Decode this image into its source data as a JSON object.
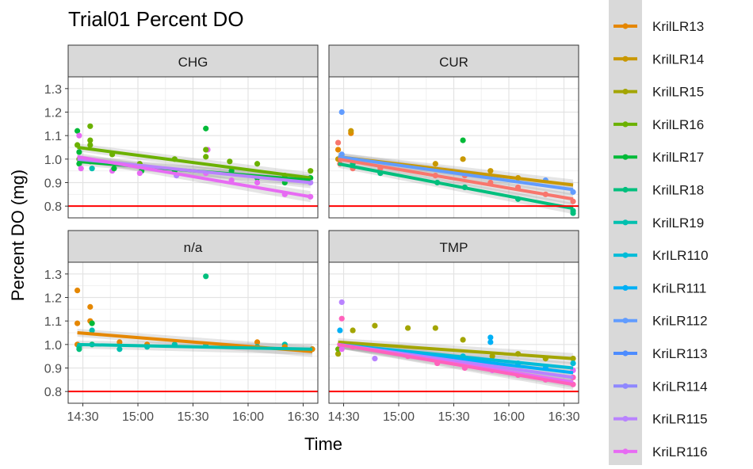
{
  "chart_data": {
    "type": "scatter",
    "title": "Trial01 Percent DO",
    "xlabel": "Time",
    "ylabel": "Percent DO (mg)",
    "ylim": [
      0.75,
      1.35
    ],
    "yticks": [
      0.8,
      0.9,
      1.0,
      1.1,
      1.2,
      1.3
    ],
    "ytick_labels": [
      "0.8",
      "0.9",
      "1.0",
      "1.1",
      "1.2",
      "1.3"
    ],
    "xlim": [
      "14:22",
      "16:38"
    ],
    "xticks": [
      "14:30",
      "15:00",
      "15:30",
      "16:00",
      "16:30"
    ],
    "reference_line": {
      "y": 0.8,
      "color": "#ff0000"
    },
    "grid": true,
    "legend_position": "right",
    "series": [
      {
        "name": "KrilLR13",
        "color": "#E58700"
      },
      {
        "name": "KrilLR14",
        "color": "#C99800"
      },
      {
        "name": "KrilLR15",
        "color": "#A3A500"
      },
      {
        "name": "KrilLR16",
        "color": "#6BB100"
      },
      {
        "name": "KrilLR17",
        "color": "#00BA38"
      },
      {
        "name": "KrilLR18",
        "color": "#00BF7D"
      },
      {
        "name": "KrilLR19",
        "color": "#00C0AF"
      },
      {
        "name": "KrILR110",
        "color": "#00BCD8"
      },
      {
        "name": "KriLR111",
        "color": "#00B0F6"
      },
      {
        "name": "KriLR112",
        "color": "#619CFF"
      },
      {
        "name": "KriLR113",
        "color": "#4d8cff"
      },
      {
        "name": "KriLR114",
        "color": "#8f88ff"
      },
      {
        "name": "KriLR115",
        "color": "#B983FF"
      },
      {
        "name": "KriLR116",
        "color": "#E76BF3"
      }
    ],
    "facets": [
      {
        "label": "CHG",
        "fit_lines": [
          {
            "color": "#6BB100",
            "start": [
              "14:27",
              1.05
            ],
            "end": [
              "16:34",
              0.92
            ]
          },
          {
            "color": "#00BA38",
            "start": [
              "14:27",
              0.99
            ],
            "end": [
              "16:34",
              0.91
            ]
          },
          {
            "color": "#B983FF",
            "start": [
              "14:27",
              1.0
            ],
            "end": [
              "16:34",
              0.9
            ]
          },
          {
            "color": "#E76BF3",
            "start": [
              "14:27",
              1.01
            ],
            "end": [
              "16:34",
              0.84
            ]
          }
        ],
        "points": [
          {
            "x": "14:27",
            "y": 1.12,
            "c": "#00BA38"
          },
          {
            "x": "14:27",
            "y": 1.06,
            "c": "#6BB100"
          },
          {
            "x": "14:28",
            "y": 1.03,
            "c": "#00BA38"
          },
          {
            "x": "14:28",
            "y": 1.0,
            "c": "#6BB100"
          },
          {
            "x": "14:28",
            "y": 0.98,
            "c": "#00BA38"
          },
          {
            "x": "14:29",
            "y": 0.96,
            "c": "#E76BF3"
          },
          {
            "x": "14:28",
            "y": 1.1,
            "c": "#E76BF3"
          },
          {
            "x": "14:34",
            "y": 1.14,
            "c": "#6BB100"
          },
          {
            "x": "14:34",
            "y": 1.08,
            "c": "#6BB100"
          },
          {
            "x": "14:34",
            "y": 1.06,
            "c": "#6BB100"
          },
          {
            "x": "14:34",
            "y": 0.99,
            "c": "#00BA38"
          },
          {
            "x": "14:35",
            "y": 0.96,
            "c": "#00C0AF"
          },
          {
            "x": "14:46",
            "y": 1.02,
            "c": "#6BB100"
          },
          {
            "x": "14:46",
            "y": 0.95,
            "c": "#E76BF3"
          },
          {
            "x": "14:47",
            "y": 0.96,
            "c": "#00BA38"
          },
          {
            "x": "15:01",
            "y": 0.98,
            "c": "#6BB100"
          },
          {
            "x": "15:02",
            "y": 0.95,
            "c": "#00BA38"
          },
          {
            "x": "15:01",
            "y": 0.94,
            "c": "#E76BF3"
          },
          {
            "x": "15:20",
            "y": 1.0,
            "c": "#6BB100"
          },
          {
            "x": "15:21",
            "y": 0.93,
            "c": "#B983FF"
          },
          {
            "x": "15:20",
            "y": 0.95,
            "c": "#00BA38"
          },
          {
            "x": "15:37",
            "y": 1.13,
            "c": "#00BA38"
          },
          {
            "x": "15:38",
            "y": 1.04,
            "c": "#E76BF3"
          },
          {
            "x": "15:37",
            "y": 1.04,
            "c": "#6BB100"
          },
          {
            "x": "15:37",
            "y": 1.01,
            "c": "#6BB100"
          },
          {
            "x": "15:37",
            "y": 0.94,
            "c": "#E76BF3"
          },
          {
            "x": "15:50",
            "y": 0.99,
            "c": "#6BB100"
          },
          {
            "x": "15:51",
            "y": 0.95,
            "c": "#00BA38"
          },
          {
            "x": "15:51",
            "y": 0.91,
            "c": "#E76BF3"
          },
          {
            "x": "16:05",
            "y": 0.98,
            "c": "#6BB100"
          },
          {
            "x": "16:05",
            "y": 0.92,
            "c": "#00BA38"
          },
          {
            "x": "16:05",
            "y": 0.9,
            "c": "#E76BF3"
          },
          {
            "x": "16:20",
            "y": 0.93,
            "c": "#6BB100"
          },
          {
            "x": "16:20",
            "y": 0.9,
            "c": "#00BA38"
          },
          {
            "x": "16:20",
            "y": 0.85,
            "c": "#E76BF3"
          },
          {
            "x": "16:34",
            "y": 0.95,
            "c": "#6BB100"
          },
          {
            "x": "16:34",
            "y": 0.92,
            "c": "#00BA38"
          },
          {
            "x": "16:34",
            "y": 0.9,
            "c": "#B983FF"
          },
          {
            "x": "16:34",
            "y": 0.84,
            "c": "#E76BF3"
          }
        ]
      },
      {
        "label": "CUR",
        "fit_lines": [
          {
            "color": "#C99800",
            "start": [
              "14:27",
              1.01
            ],
            "end": [
              "16:35",
              0.89
            ]
          },
          {
            "color": "#619CFF",
            "start": [
              "14:27",
              1.01
            ],
            "end": [
              "16:35",
              0.87
            ]
          },
          {
            "color": "#F8766D",
            "start": [
              "14:27",
              1.0
            ],
            "end": [
              "16:35",
              0.83
            ]
          },
          {
            "color": "#00BF7D",
            "start": [
              "14:27",
              0.98
            ],
            "end": [
              "16:35",
              0.79
            ]
          }
        ],
        "points": [
          {
            "x": "14:27",
            "y": 1.07,
            "c": "#F8766D"
          },
          {
            "x": "14:27",
            "y": 1.04,
            "c": "#E58700"
          },
          {
            "x": "14:27",
            "y": 1.0,
            "c": "#C99800"
          },
          {
            "x": "14:28",
            "y": 0.98,
            "c": "#F8766D"
          },
          {
            "x": "14:29",
            "y": 1.2,
            "c": "#619CFF"
          },
          {
            "x": "14:29",
            "y": 1.02,
            "c": "#619CFF"
          },
          {
            "x": "14:34",
            "y": 1.11,
            "c": "#E58700"
          },
          {
            "x": "14:34",
            "y": 1.12,
            "c": "#C99800"
          },
          {
            "x": "14:35",
            "y": 0.98,
            "c": "#00BF7D"
          },
          {
            "x": "14:35",
            "y": 0.96,
            "c": "#F8766D"
          },
          {
            "x": "14:50",
            "y": 0.96,
            "c": "#F8766D"
          },
          {
            "x": "14:50",
            "y": 0.94,
            "c": "#00BF7D"
          },
          {
            "x": "15:20",
            "y": 0.98,
            "c": "#C99800"
          },
          {
            "x": "15:20",
            "y": 0.93,
            "c": "#F8766D"
          },
          {
            "x": "15:21",
            "y": 0.9,
            "c": "#00BF7D"
          },
          {
            "x": "15:35",
            "y": 1.08,
            "c": "#00BA38"
          },
          {
            "x": "15:35",
            "y": 1.0,
            "c": "#C99800"
          },
          {
            "x": "15:36",
            "y": 0.88,
            "c": "#00BF7D"
          },
          {
            "x": "15:36",
            "y": 0.93,
            "c": "#F8766D"
          },
          {
            "x": "15:50",
            "y": 0.95,
            "c": "#C99800"
          },
          {
            "x": "15:50",
            "y": 0.9,
            "c": "#F8766D"
          },
          {
            "x": "16:05",
            "y": 0.92,
            "c": "#C99800"
          },
          {
            "x": "16:05",
            "y": 0.88,
            "c": "#F8766D"
          },
          {
            "x": "16:05",
            "y": 0.83,
            "c": "#00BF7D"
          },
          {
            "x": "16:20",
            "y": 0.91,
            "c": "#619CFF"
          },
          {
            "x": "16:20",
            "y": 0.85,
            "c": "#F8766D"
          },
          {
            "x": "16:35",
            "y": 0.86,
            "c": "#619CFF"
          },
          {
            "x": "16:35",
            "y": 0.82,
            "c": "#F8766D"
          },
          {
            "x": "16:35",
            "y": 0.78,
            "c": "#00BF7D"
          },
          {
            "x": "16:35",
            "y": 0.77,
            "c": "#00BF7D"
          }
        ]
      },
      {
        "label": "n/a",
        "fit_lines": [
          {
            "color": "#E58700",
            "start": [
              "14:27",
              1.05
            ],
            "end": [
              "16:35",
              0.97
            ]
          },
          {
            "color": "#00C0AF",
            "start": [
              "14:27",
              1.0
            ],
            "end": [
              "16:35",
              0.98
            ]
          }
        ],
        "points": [
          {
            "x": "14:27",
            "y": 1.23,
            "c": "#E58700"
          },
          {
            "x": "14:27",
            "y": 1.09,
            "c": "#E58700"
          },
          {
            "x": "14:27",
            "y": 1.0,
            "c": "#E58700"
          },
          {
            "x": "14:28",
            "y": 0.99,
            "c": "#00C0AF"
          },
          {
            "x": "14:28",
            "y": 0.98,
            "c": "#00BF7D"
          },
          {
            "x": "14:34",
            "y": 1.16,
            "c": "#E58700"
          },
          {
            "x": "14:34",
            "y": 1.1,
            "c": "#E58700"
          },
          {
            "x": "14:35",
            "y": 1.09,
            "c": "#00BA38"
          },
          {
            "x": "14:35",
            "y": 1.06,
            "c": "#00C0AF"
          },
          {
            "x": "14:35",
            "y": 1.0,
            "c": "#00BF7D"
          },
          {
            "x": "14:50",
            "y": 1.01,
            "c": "#E58700"
          },
          {
            "x": "14:50",
            "y": 0.98,
            "c": "#00C0AF"
          },
          {
            "x": "15:05",
            "y": 1.0,
            "c": "#E58700"
          },
          {
            "x": "15:05",
            "y": 0.99,
            "c": "#00C0AF"
          },
          {
            "x": "15:20",
            "y": 1.0,
            "c": "#00C0AF"
          },
          {
            "x": "15:37",
            "y": 1.29,
            "c": "#00BF7D"
          },
          {
            "x": "15:37",
            "y": 1.0,
            "c": "#00C0AF"
          },
          {
            "x": "16:05",
            "y": 1.01,
            "c": "#E58700"
          },
          {
            "x": "16:05",
            "y": 0.99,
            "c": "#00C0AF"
          },
          {
            "x": "16:20",
            "y": 1.0,
            "c": "#00C0AF"
          },
          {
            "x": "16:20",
            "y": 0.99,
            "c": "#E58700"
          },
          {
            "x": "16:35",
            "y": 0.98,
            "c": "#00C0AF"
          },
          {
            "x": "16:35",
            "y": 0.98,
            "c": "#E58700"
          }
        ]
      },
      {
        "label": "TMP",
        "fit_lines": [
          {
            "color": "#A3A500",
            "start": [
              "14:27",
              1.01
            ],
            "end": [
              "16:35",
              0.94
            ]
          },
          {
            "color": "#00BCD8",
            "start": [
              "14:27",
              1.0
            ],
            "end": [
              "16:35",
              0.9
            ]
          },
          {
            "color": "#00B0F6",
            "start": [
              "14:27",
              1.0
            ],
            "end": [
              "16:35",
              0.88
            ]
          },
          {
            "color": "#B983FF",
            "start": [
              "14:27",
              1.0
            ],
            "end": [
              "16:35",
              0.86
            ]
          },
          {
            "color": "#E76BF3",
            "start": [
              "14:27",
              1.0
            ],
            "end": [
              "16:35",
              0.84
            ]
          },
          {
            "color": "#FF62BC",
            "start": [
              "14:27",
              1.0
            ],
            "end": [
              "16:35",
              0.83
            ]
          }
        ],
        "points": [
          {
            "x": "14:27",
            "y": 0.96,
            "c": "#A3A500"
          },
          {
            "x": "14:27",
            "y": 0.98,
            "c": "#6BB100"
          },
          {
            "x": "14:28",
            "y": 1.06,
            "c": "#00B0F6"
          },
          {
            "x": "14:28",
            "y": 1.0,
            "c": "#FF62BC"
          },
          {
            "x": "14:29",
            "y": 1.18,
            "c": "#B983FF"
          },
          {
            "x": "14:29",
            "y": 1.11,
            "c": "#FF62BC"
          },
          {
            "x": "14:29",
            "y": 0.98,
            "c": "#E76BF3"
          },
          {
            "x": "14:35",
            "y": 1.06,
            "c": "#A3A500"
          },
          {
            "x": "14:35",
            "y": 0.99,
            "c": "#FF62BC"
          },
          {
            "x": "14:47",
            "y": 1.08,
            "c": "#A3A500"
          },
          {
            "x": "14:47",
            "y": 0.94,
            "c": "#B983FF"
          },
          {
            "x": "15:05",
            "y": 1.07,
            "c": "#A3A500"
          },
          {
            "x": "15:05",
            "y": 0.95,
            "c": "#FF62BC"
          },
          {
            "x": "15:20",
            "y": 1.07,
            "c": "#A3A500"
          },
          {
            "x": "15:21",
            "y": 0.92,
            "c": "#FF62BC"
          },
          {
            "x": "15:35",
            "y": 1.02,
            "c": "#A3A500"
          },
          {
            "x": "15:35",
            "y": 0.95,
            "c": "#00BCD8"
          },
          {
            "x": "15:36",
            "y": 0.9,
            "c": "#FF62BC"
          },
          {
            "x": "15:50",
            "y": 1.03,
            "c": "#00B0F6"
          },
          {
            "x": "15:50",
            "y": 1.01,
            "c": "#00B0F6"
          },
          {
            "x": "15:51",
            "y": 0.95,
            "c": "#A3A500"
          },
          {
            "x": "15:51",
            "y": 0.89,
            "c": "#E76BF3"
          },
          {
            "x": "16:05",
            "y": 0.96,
            "c": "#A3A500"
          },
          {
            "x": "16:05",
            "y": 0.92,
            "c": "#00BCD8"
          },
          {
            "x": "16:05",
            "y": 0.87,
            "c": "#FF62BC"
          },
          {
            "x": "16:20",
            "y": 0.94,
            "c": "#A3A500"
          },
          {
            "x": "16:20",
            "y": 0.9,
            "c": "#00B0F6"
          },
          {
            "x": "16:20",
            "y": 0.85,
            "c": "#FF62BC"
          },
          {
            "x": "16:35",
            "y": 0.94,
            "c": "#A3A500"
          },
          {
            "x": "16:35",
            "y": 0.92,
            "c": "#00BCD8"
          },
          {
            "x": "16:35",
            "y": 0.89,
            "c": "#E76BF3"
          },
          {
            "x": "16:35",
            "y": 0.86,
            "c": "#FF62BC"
          },
          {
            "x": "16:35",
            "y": 0.83,
            "c": "#FF62BC"
          }
        ]
      }
    ]
  }
}
